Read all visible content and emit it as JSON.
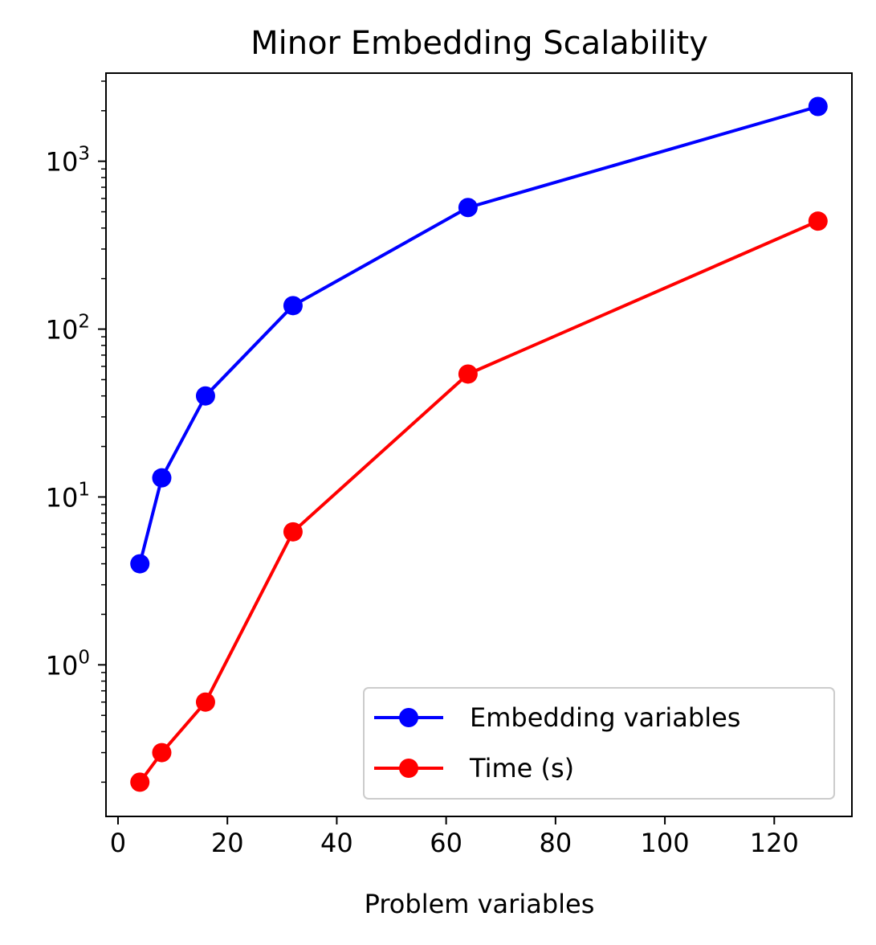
{
  "chart_data": {
    "type": "line",
    "title": "Minor Embedding Scalability",
    "xlabel": "Problem variables",
    "ylabel": "",
    "x": [
      4,
      8,
      16,
      32,
      64,
      128
    ],
    "xlim": [
      -2.2,
      134.2
    ],
    "ylim": [
      0.125,
      3350
    ],
    "yscale": "log",
    "xticks": [
      0,
      20,
      40,
      60,
      80,
      100,
      120
    ],
    "yticks": [
      {
        "value": 1,
        "base": "10",
        "exp": "0"
      },
      {
        "value": 10,
        "base": "10",
        "exp": "1"
      },
      {
        "value": 100,
        "base": "10",
        "exp": "2"
      },
      {
        "value": 1000,
        "base": "10",
        "exp": "3"
      }
    ],
    "grid": false,
    "legend_position": "lower-right",
    "series": [
      {
        "name": "Embedding variables",
        "color": "#0000ff",
        "marker": "circle",
        "values": [
          4,
          13,
          40,
          138,
          530,
          2120
        ]
      },
      {
        "name": "Time (s)",
        "color": "#ff0000",
        "marker": "circle",
        "values": [
          0.2,
          0.3,
          0.6,
          6.2,
          54,
          440
        ]
      }
    ]
  }
}
